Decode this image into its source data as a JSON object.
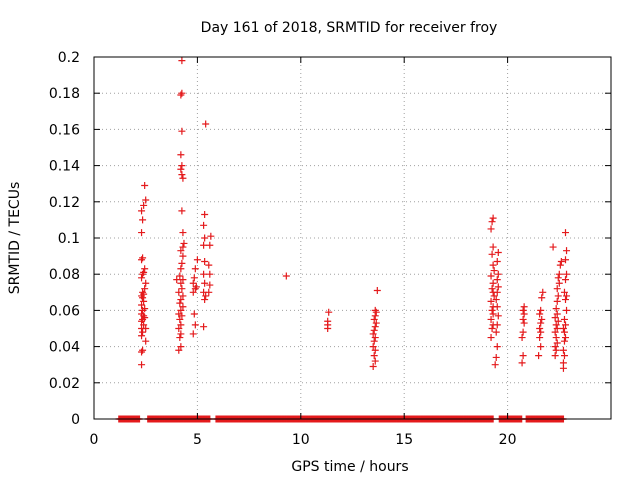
{
  "chart_data": {
    "type": "scatter",
    "title": "Day 161 of 2018, SRMTID for receiver froy",
    "xlabel": "GPS time / hours",
    "ylabel": "SRMTID / TECUs",
    "xlim": [
      0,
      25
    ],
    "ylim": [
      0,
      0.2
    ],
    "xticks": [
      0,
      5,
      10,
      15,
      20
    ],
    "xtick_labels": [
      "0",
      "5",
      "10",
      "15",
      "20"
    ],
    "yticks": [
      0,
      0.02,
      0.04,
      0.06,
      0.08,
      0.1,
      0.12,
      0.14,
      0.16,
      0.18,
      0.2
    ],
    "ytick_labels": [
      "0",
      "0.02",
      "0.04",
      "0.06",
      "0.08",
      "0.1",
      "0.12",
      "0.14",
      "0.16",
      "0.18",
      "0.2"
    ],
    "grid": true,
    "marker": "+",
    "color": "#e41a1c",
    "zero_baseline_segments": [
      [
        1.2,
        2.2
      ],
      [
        2.6,
        5.6
      ],
      [
        5.9,
        19.3
      ],
      [
        19.6,
        20.7
      ],
      [
        20.9,
        22.7
      ]
    ],
    "series": [
      {
        "name": "SRMTID",
        "points": [
          [
            2.3,
            0.03
          ],
          [
            2.3,
            0.037
          ],
          [
            2.35,
            0.038
          ],
          [
            2.3,
            0.046
          ],
          [
            2.35,
            0.048
          ],
          [
            2.3,
            0.05
          ],
          [
            2.4,
            0.052
          ],
          [
            2.3,
            0.054
          ],
          [
            2.35,
            0.055
          ],
          [
            2.4,
            0.057
          ],
          [
            2.3,
            0.058
          ],
          [
            2.35,
            0.06
          ],
          [
            2.45,
            0.061
          ],
          [
            2.3,
            0.063
          ],
          [
            2.4,
            0.065
          ],
          [
            2.35,
            0.067
          ],
          [
            2.3,
            0.068
          ],
          [
            2.4,
            0.069
          ],
          [
            2.35,
            0.07
          ],
          [
            2.45,
            0.072
          ],
          [
            2.3,
            0.078
          ],
          [
            2.35,
            0.08
          ],
          [
            2.4,
            0.081
          ],
          [
            2.45,
            0.083
          ],
          [
            2.3,
            0.088
          ],
          [
            2.35,
            0.089
          ],
          [
            2.3,
            0.103
          ],
          [
            2.35,
            0.11
          ],
          [
            2.3,
            0.115
          ],
          [
            2.4,
            0.118
          ],
          [
            2.5,
            0.121
          ],
          [
            2.45,
            0.129
          ],
          [
            2.5,
            0.05
          ],
          [
            2.5,
            0.043
          ],
          [
            2.45,
            0.056
          ],
          [
            2.5,
            0.075
          ],
          [
            4.0,
            0.077
          ],
          [
            4.1,
            0.038
          ],
          [
            4.2,
            0.04
          ],
          [
            4.15,
            0.045
          ],
          [
            4.2,
            0.047
          ],
          [
            4.1,
            0.05
          ],
          [
            4.2,
            0.052
          ],
          [
            4.15,
            0.055
          ],
          [
            4.25,
            0.057
          ],
          [
            4.1,
            0.058
          ],
          [
            4.2,
            0.06
          ],
          [
            4.3,
            0.062
          ],
          [
            4.15,
            0.064
          ],
          [
            4.2,
            0.066
          ],
          [
            4.3,
            0.068
          ],
          [
            4.1,
            0.07
          ],
          [
            4.25,
            0.072
          ],
          [
            4.2,
            0.075
          ],
          [
            4.3,
            0.077
          ],
          [
            4.15,
            0.079
          ],
          [
            4.2,
            0.083
          ],
          [
            4.25,
            0.086
          ],
          [
            4.3,
            0.09
          ],
          [
            4.2,
            0.093
          ],
          [
            4.3,
            0.095
          ],
          [
            4.35,
            0.097
          ],
          [
            4.3,
            0.103
          ],
          [
            4.25,
            0.115
          ],
          [
            4.3,
            0.133
          ],
          [
            4.25,
            0.135
          ],
          [
            4.2,
            0.138
          ],
          [
            4.25,
            0.14
          ],
          [
            4.2,
            0.146
          ],
          [
            4.25,
            0.159
          ],
          [
            4.2,
            0.179
          ],
          [
            4.25,
            0.18
          ],
          [
            4.25,
            0.198
          ],
          [
            4.8,
            0.047
          ],
          [
            4.9,
            0.052
          ],
          [
            4.85,
            0.058
          ],
          [
            4.8,
            0.07
          ],
          [
            4.9,
            0.072
          ],
          [
            4.8,
            0.075
          ],
          [
            4.85,
            0.078
          ],
          [
            4.9,
            0.083
          ],
          [
            5.0,
            0.088
          ],
          [
            4.95,
            0.073
          ],
          [
            5.3,
            0.051
          ],
          [
            5.35,
            0.066
          ],
          [
            5.4,
            0.068
          ],
          [
            5.3,
            0.07
          ],
          [
            5.35,
            0.075
          ],
          [
            5.3,
            0.08
          ],
          [
            5.35,
            0.087
          ],
          [
            5.3,
            0.096
          ],
          [
            5.35,
            0.1
          ],
          [
            5.3,
            0.107
          ],
          [
            5.35,
            0.113
          ],
          [
            5.4,
            0.163
          ],
          [
            5.55,
            0.07
          ],
          [
            5.6,
            0.074
          ],
          [
            5.6,
            0.08
          ],
          [
            5.55,
            0.085
          ],
          [
            5.6,
            0.096
          ],
          [
            5.65,
            0.101
          ],
          [
            9.3,
            0.079
          ],
          [
            11.3,
            0.05
          ],
          [
            11.3,
            0.052
          ],
          [
            11.3,
            0.054
          ],
          [
            11.35,
            0.059
          ],
          [
            13.5,
            0.029
          ],
          [
            13.6,
            0.032
          ],
          [
            13.55,
            0.035
          ],
          [
            13.6,
            0.038
          ],
          [
            13.5,
            0.04
          ],
          [
            13.55,
            0.043
          ],
          [
            13.6,
            0.045
          ],
          [
            13.5,
            0.047
          ],
          [
            13.55,
            0.049
          ],
          [
            13.6,
            0.051
          ],
          [
            13.65,
            0.053
          ],
          [
            13.55,
            0.055
          ],
          [
            13.6,
            0.057
          ],
          [
            13.65,
            0.059
          ],
          [
            13.6,
            0.06
          ],
          [
            13.7,
            0.071
          ],
          [
            19.2,
            0.045
          ],
          [
            19.25,
            0.05
          ],
          [
            19.3,
            0.052
          ],
          [
            19.2,
            0.055
          ],
          [
            19.3,
            0.058
          ],
          [
            19.25,
            0.06
          ],
          [
            19.3,
            0.062
          ],
          [
            19.2,
            0.065
          ],
          [
            19.35,
            0.068
          ],
          [
            19.3,
            0.07
          ],
          [
            19.25,
            0.072
          ],
          [
            19.3,
            0.075
          ],
          [
            19.2,
            0.079
          ],
          [
            19.35,
            0.082
          ],
          [
            19.3,
            0.085
          ],
          [
            19.25,
            0.091
          ],
          [
            19.3,
            0.095
          ],
          [
            19.2,
            0.105
          ],
          [
            19.25,
            0.109
          ],
          [
            19.3,
            0.111
          ],
          [
            19.4,
            0.03
          ],
          [
            19.45,
            0.034
          ],
          [
            19.5,
            0.04
          ],
          [
            19.45,
            0.048
          ],
          [
            19.5,
            0.052
          ],
          [
            19.55,
            0.057
          ],
          [
            19.5,
            0.062
          ],
          [
            19.45,
            0.066
          ],
          [
            19.5,
            0.07
          ],
          [
            19.55,
            0.073
          ],
          [
            19.5,
            0.077
          ],
          [
            19.55,
            0.08
          ],
          [
            19.5,
            0.087
          ],
          [
            19.55,
            0.092
          ],
          [
            20.7,
            0.031
          ],
          [
            20.75,
            0.035
          ],
          [
            20.7,
            0.045
          ],
          [
            20.75,
            0.048
          ],
          [
            20.8,
            0.053
          ],
          [
            20.75,
            0.055
          ],
          [
            20.8,
            0.058
          ],
          [
            20.75,
            0.06
          ],
          [
            20.8,
            0.062
          ],
          [
            21.5,
            0.035
          ],
          [
            21.6,
            0.04
          ],
          [
            21.55,
            0.045
          ],
          [
            21.6,
            0.048
          ],
          [
            21.55,
            0.05
          ],
          [
            21.6,
            0.053
          ],
          [
            21.65,
            0.055
          ],
          [
            21.55,
            0.058
          ],
          [
            21.6,
            0.06
          ],
          [
            21.65,
            0.067
          ],
          [
            21.7,
            0.07
          ],
          [
            22.2,
            0.095
          ],
          [
            22.3,
            0.035
          ],
          [
            22.35,
            0.038
          ],
          [
            22.3,
            0.04
          ],
          [
            22.4,
            0.042
          ],
          [
            22.35,
            0.045
          ],
          [
            22.3,
            0.048
          ],
          [
            22.4,
            0.05
          ],
          [
            22.35,
            0.052
          ],
          [
            22.45,
            0.054
          ],
          [
            22.3,
            0.056
          ],
          [
            22.4,
            0.058
          ],
          [
            22.35,
            0.061
          ],
          [
            22.4,
            0.065
          ],
          [
            22.45,
            0.068
          ],
          [
            22.4,
            0.072
          ],
          [
            22.5,
            0.075
          ],
          [
            22.45,
            0.078
          ],
          [
            22.5,
            0.08
          ],
          [
            22.55,
            0.085
          ],
          [
            22.6,
            0.087
          ],
          [
            22.7,
            0.028
          ],
          [
            22.7,
            0.031
          ],
          [
            22.75,
            0.035
          ],
          [
            22.7,
            0.038
          ],
          [
            22.75,
            0.043
          ],
          [
            22.8,
            0.045
          ],
          [
            22.75,
            0.048
          ],
          [
            22.7,
            0.05
          ],
          [
            22.8,
            0.052
          ],
          [
            22.75,
            0.055
          ],
          [
            22.85,
            0.06
          ],
          [
            22.8,
            0.066
          ],
          [
            22.85,
            0.068
          ],
          [
            22.75,
            0.07
          ],
          [
            22.8,
            0.077
          ],
          [
            22.85,
            0.08
          ],
          [
            22.8,
            0.088
          ],
          [
            22.85,
            0.093
          ],
          [
            22.8,
            0.103
          ]
        ]
      }
    ]
  }
}
